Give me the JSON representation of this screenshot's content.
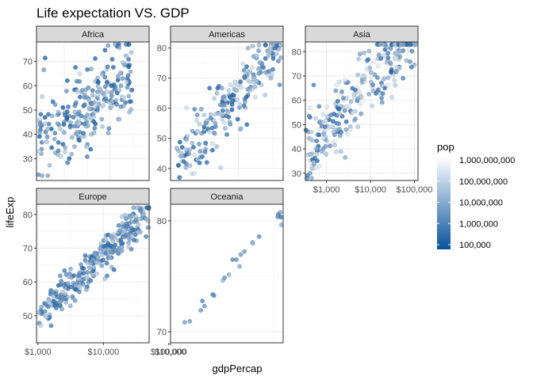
{
  "chart_data": {
    "type": "scatter",
    "title": "Life expectation VS. GDP",
    "xlabel": "gdpPercap",
    "ylabel": "lifeExp",
    "x_scale": "log10",
    "x_ticks": [
      1000,
      10000,
      100000
    ],
    "x_tick_labels": [
      "$1,000",
      "$10,000",
      "$100,000"
    ],
    "grid": true,
    "legend": {
      "title": "pop",
      "placement": "right",
      "scale": "log10",
      "range": [
        60000,
        1300000000
      ],
      "breaks": [
        1000000000,
        100000000,
        10000000,
        1000000,
        100000
      ],
      "labels": [
        "1,000,000,000",
        "100,000,000",
        "10,000,000",
        "1,000,000",
        "100,000"
      ],
      "color_low": "#08519c",
      "color_high": "#ffffff"
    },
    "facets": [
      {
        "name": "Africa",
        "xlim": [
          250,
          70000
        ],
        "ylim": [
          21,
          78
        ],
        "y_ticks": [
          30,
          40,
          50,
          60,
          70
        ],
        "n_points": 260,
        "x_trend": [
          300,
          20000
        ],
        "y_trend": [
          38,
          62
        ],
        "y_spread": 9,
        "x_range": [
          250,
          30000
        ],
        "y_clip": [
          23,
          77
        ],
        "pop_range": [
          60000,
          150000000
        ],
        "seed": 11
      },
      {
        "name": "Americas",
        "xlim": [
          1000,
          45000
        ],
        "ylim": [
          36,
          82
        ],
        "y_ticks": [
          40,
          50,
          60,
          70,
          80
        ],
        "n_points": 240,
        "x_trend": [
          1200,
          40000
        ],
        "y_trend": [
          42,
          80
        ],
        "y_spread": 5,
        "x_range": [
          1200,
          42000
        ],
        "y_clip": [
          37,
          81
        ],
        "pop_range": [
          100000,
          300000000
        ],
        "seed": 23
      },
      {
        "name": "Asia",
        "xlim": [
          330,
          120000
        ],
        "ylim": [
          27,
          84
        ],
        "y_ticks": [
          30,
          40,
          50,
          60,
          70,
          80
        ],
        "n_points": 300,
        "x_trend": [
          400,
          40000
        ],
        "y_trend": [
          40,
          80
        ],
        "y_spread": 8,
        "x_range": [
          330,
          110000
        ],
        "y_clip": [
          28,
          83
        ],
        "pop_range": [
          100000,
          1300000000
        ],
        "seed": 37
      },
      {
        "name": "Europe",
        "xlim": [
          950,
          50000
        ],
        "ylim": [
          42,
          83
        ],
        "y_ticks": [
          50,
          60,
          70,
          80
        ],
        "n_points": 300,
        "x_trend": [
          2000,
          48000
        ],
        "y_trend": [
          55,
          81
        ],
        "y_spread": 3,
        "x_range": [
          1000,
          50000
        ],
        "y_clip": [
          43,
          82
        ],
        "pop_range": [
          150000,
          80000000
        ],
        "seed": 53
      },
      {
        "name": "Oceania",
        "xlim": [
          10000,
          35000
        ],
        "ylim": [
          69,
          81.5
        ],
        "y_ticks": [
          70,
          80
        ],
        "n_points": 24,
        "x_trend": [
          10000,
          35000
        ],
        "y_trend": [
          69,
          81
        ],
        "y_spread": 0.4,
        "x_range": [
          10000,
          35000
        ],
        "y_clip": [
          69,
          81.5
        ],
        "pop_range": [
          1000000,
          20000000
        ],
        "seed": 71
      }
    ]
  }
}
